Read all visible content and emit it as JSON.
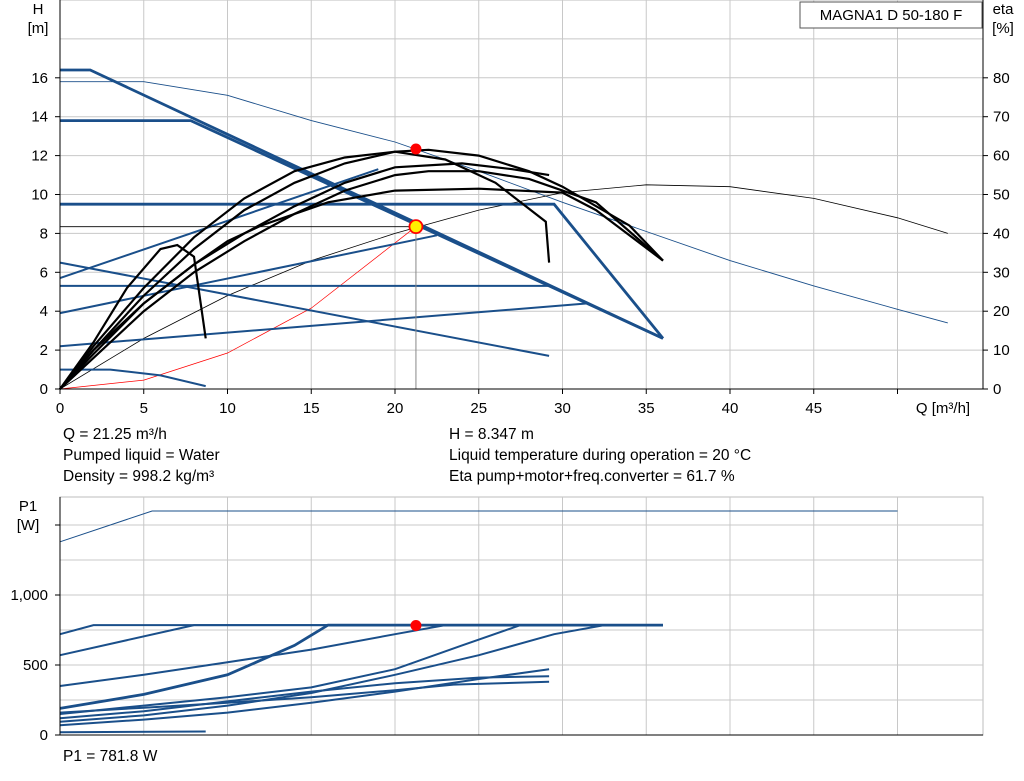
{
  "chart_data": {
    "type": "line",
    "product_label": "MAGNA1 D 50-180 F",
    "top": {
      "y_title": "H",
      "y_unit": "[m]",
      "y2_title": "eta",
      "y2_unit": "[%]",
      "x_label": "Q [m³/h]",
      "xlim": [
        0,
        55
      ],
      "ylim": [
        0,
        20
      ],
      "y2lim": [
        0,
        100
      ],
      "x_ticks": [
        0,
        5,
        10,
        15,
        20,
        25,
        30,
        35,
        40,
        45
      ],
      "y_ticks": [
        0,
        2,
        4,
        6,
        8,
        10,
        12,
        14,
        16
      ],
      "y2_ticks": [
        0,
        10,
        20,
        30,
        40,
        50,
        60,
        70,
        80
      ],
      "grid": true,
      "head_curves": [
        {
          "points": [
            [
              0,
              16.4
            ],
            [
              1.8,
              16.4
            ],
            [
              36,
              2.6
            ]
          ]
        },
        {
          "points": [
            [
              0,
              13.8
            ],
            [
              7.8,
              13.8
            ],
            [
              36,
              2.6
            ]
          ]
        },
        {
          "points": [
            [
              0,
              9.5
            ],
            [
              29.5,
              9.5
            ],
            [
              36,
              2.6
            ]
          ]
        },
        {
          "points": [
            [
              0,
              6.5
            ],
            [
              29.2,
              1.7
            ]
          ]
        },
        {
          "points": [
            [
              0,
              5.3
            ],
            [
              29.2,
              5.3
            ]
          ]
        },
        {
          "points": [
            [
              0,
              1.0
            ],
            [
              3,
              1.0
            ],
            [
              6,
              0.7
            ],
            [
              8.7,
              0.15
            ]
          ]
        }
      ],
      "system_curves": [
        {
          "points": [
            [
              0,
              5.7
            ],
            [
              19,
              11.3
            ]
          ]
        },
        {
          "points": [
            [
              0,
              3.9
            ],
            [
              22.5,
              7.9
            ]
          ]
        },
        {
          "points": [
            [
              0,
              2.2
            ],
            [
              31.5,
              4.4
            ]
          ]
        }
      ],
      "efficiency_curves": [
        {
          "points": [
            [
              0,
              0
            ],
            [
              2,
              8
            ],
            [
              5,
              20
            ],
            [
              8,
              30
            ],
            [
              11,
              38
            ],
            [
              14,
              45
            ],
            [
              17,
              51
            ],
            [
              20,
              55
            ],
            [
              22,
              56
            ],
            [
              25,
              56
            ],
            [
              28,
              54
            ],
            [
              30,
              51
            ],
            [
              32,
              48
            ],
            [
              36,
              33
            ]
          ]
        },
        {
          "points": [
            [
              0,
              0
            ],
            [
              2,
              10
            ],
            [
              5,
              24
            ],
            [
              8,
              36
            ],
            [
              11,
              46
            ],
            [
              14,
              53
            ],
            [
              17,
              58
            ],
            [
              20,
              61
            ],
            [
              22,
              61.5
            ],
            [
              25,
              60
            ],
            [
              28,
              56
            ],
            [
              30,
              52
            ],
            [
              34,
              42
            ],
            [
              36,
              33
            ]
          ]
        },
        {
          "points": [
            [
              0,
              0
            ],
            [
              2,
              11
            ],
            [
              5,
              26
            ],
            [
              8,
              39
            ],
            [
              11,
              49
            ],
            [
              14,
              56
            ],
            [
              17,
              59.5
            ],
            [
              20,
              61
            ],
            [
              23,
              59
            ],
            [
              26,
              53
            ],
            [
              29,
              43
            ],
            [
              29.2,
              32.5
            ]
          ]
        },
        {
          "points": [
            [
              0,
              0
            ],
            [
              2,
              9
            ],
            [
              5,
              22
            ],
            [
              8,
              32
            ],
            [
              10,
              38
            ],
            [
              12,
              42
            ],
            [
              16,
              48
            ],
            [
              20,
              51
            ],
            [
              25,
              51.5
            ],
            [
              30,
              50.5
            ],
            [
              32,
              46
            ],
            [
              36,
              33
            ]
          ]
        },
        {
          "points": [
            [
              0,
              0
            ],
            [
              2,
              12
            ],
            [
              4,
              26
            ],
            [
              6,
              36
            ],
            [
              7,
              37
            ],
            [
              8,
              34
            ],
            [
              8.7,
              13
            ]
          ]
        },
        {
          "points": [
            [
              0,
              0
            ],
            [
              2,
              10
            ],
            [
              5,
              22
            ],
            [
              8,
              32
            ],
            [
              11,
              40
            ],
            [
              14,
              47
            ],
            [
              17,
              53
            ],
            [
              20,
              57
            ],
            [
              24,
              58
            ],
            [
              27,
              56.5
            ],
            [
              29.2,
              55
            ]
          ]
        }
      ],
      "max_curve": {
        "points": [
          [
            0,
            15.8
          ],
          [
            5,
            15.8
          ],
          [
            10,
            15.1
          ],
          [
            15,
            13.8
          ],
          [
            20,
            12.7
          ],
          [
            25,
            11.2
          ],
          [
            30,
            9.6
          ],
          [
            35,
            8.1
          ],
          [
            40,
            6.6
          ],
          [
            45,
            5.3
          ],
          [
            50,
            4.1
          ],
          [
            53,
            3.4
          ]
        ]
      },
      "max_eta_curve": {
        "points": [
          [
            0,
            0
          ],
          [
            5,
            13
          ],
          [
            10,
            24
          ],
          [
            15,
            33
          ],
          [
            20,
            40
          ],
          [
            25,
            46
          ],
          [
            30,
            50.5
          ],
          [
            35,
            52.5
          ],
          [
            40,
            52
          ],
          [
            45,
            49
          ],
          [
            50,
            44
          ],
          [
            53,
            40
          ]
        ]
      },
      "system_red": {
        "points": [
          [
            0,
            0
          ],
          [
            5,
            0.46
          ],
          [
            10,
            1.85
          ],
          [
            15,
            4.16
          ],
          [
            21.25,
            8.347
          ]
        ]
      },
      "duty_point": {
        "Q": 21.25,
        "H": 8.347
      },
      "eta_point": {
        "Q": 21.25,
        "eta": 61.7
      }
    },
    "bottom": {
      "y_title": "P1",
      "y_unit": "[W]",
      "xlim": [
        0,
        55
      ],
      "ylim": [
        0,
        1700
      ],
      "y_ticks": [
        0,
        500,
        1000
      ],
      "y_tick_labels": [
        "0",
        "500",
        "1,000"
      ],
      "unlabeled_ticks": [
        1500
      ],
      "grid": true,
      "power_curves": [
        {
          "points": [
            [
              0,
              720
            ],
            [
              2,
              785
            ],
            [
              36,
              785
            ]
          ]
        },
        {
          "points": [
            [
              0,
              570
            ],
            [
              8,
              785
            ],
            [
              36,
              785
            ]
          ]
        },
        {
          "points": [
            [
              0,
              190
            ],
            [
              5,
              290
            ],
            [
              10,
              430
            ],
            [
              14,
              640
            ],
            [
              16,
              785
            ],
            [
              36,
              785
            ]
          ]
        },
        {
          "points": [
            [
              0,
              350
            ],
            [
              5,
              430
            ],
            [
              10,
              520
            ],
            [
              15,
              610
            ],
            [
              20,
              720
            ],
            [
              23,
              785
            ],
            [
              36,
              785
            ]
          ]
        },
        {
          "points": [
            [
              0,
              150
            ],
            [
              5,
              210
            ],
            [
              10,
              270
            ],
            [
              15,
              340
            ],
            [
              20,
              470
            ],
            [
              24,
              640
            ],
            [
              27.5,
              785
            ],
            [
              36,
              785
            ]
          ]
        },
        {
          "points": [
            [
              0,
              95
            ],
            [
              5,
              140
            ],
            [
              10,
              210
            ],
            [
              15,
              300
            ],
            [
              20,
              430
            ],
            [
              25,
              570
            ],
            [
              29.5,
              720
            ],
            [
              32.5,
              785
            ],
            [
              36,
              785
            ]
          ]
        },
        {
          "points": [
            [
              0,
              160
            ],
            [
              5,
              195
            ],
            [
              10,
              230
            ],
            [
              15,
              270
            ],
            [
              20,
              320
            ],
            [
              23.5,
              360
            ],
            [
              25,
              365
            ],
            [
              29.2,
              380
            ]
          ]
        },
        {
          "points": [
            [
              0,
              120
            ],
            [
              5,
              170
            ],
            [
              10,
              240
            ],
            [
              15,
              310
            ],
            [
              20,
              370
            ],
            [
              25,
              410
            ],
            [
              29.2,
              420
            ]
          ]
        },
        {
          "points": [
            [
              0,
              70
            ],
            [
              5,
              110
            ],
            [
              10,
              160
            ],
            [
              15,
              230
            ],
            [
              20,
              310
            ],
            [
              25,
              400
            ],
            [
              29.2,
              470
            ]
          ]
        },
        {
          "points": [
            [
              0,
              20
            ],
            [
              8.7,
              25
            ]
          ]
        }
      ],
      "max_power_curve": {
        "points": [
          [
            0,
            1380
          ],
          [
            5.5,
            1600
          ],
          [
            50,
            1600
          ]
        ]
      },
      "duty_point": {
        "Q": 21.25,
        "P1": 781.8
      }
    }
  },
  "info": {
    "q": "Q = 21.25 m³/h",
    "liquid": "Pumped liquid = Water",
    "density": "Density = 998.2 kg/m³",
    "h": "H = 8.347 m",
    "temp": "Liquid temperature during operation = 20 °C",
    "eta": "Eta pump+motor+freq.converter = 61.7 %",
    "p1": "P1 = 781.8 W"
  },
  "colors": {
    "pump_blue": "#1a4f8a",
    "black": "#000000",
    "red_marker": "#ff0000",
    "yellow_marker": "#ffee00",
    "grid": "#c8c8c8",
    "axis": "#000000"
  }
}
